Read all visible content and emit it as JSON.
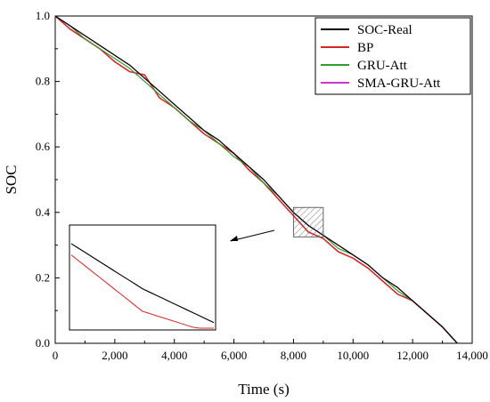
{
  "chart_data": {
    "type": "line",
    "xlabel": "Time (s)",
    "ylabel": "SOC",
    "xlim": [
      0,
      14000
    ],
    "ylim": [
      0,
      1.0
    ],
    "x_ticks": [
      0,
      2000,
      4000,
      6000,
      8000,
      10000,
      12000,
      14000
    ],
    "x_tick_labels": [
      "0",
      "2,000",
      "4,000",
      "6,000",
      "8,000",
      "10,000",
      "12,000",
      "14,000"
    ],
    "y_ticks": [
      0,
      0.2,
      0.4,
      0.6,
      0.8,
      1.0
    ],
    "y_tick_labels": [
      "0.0",
      "0.2",
      "0.4",
      "0.6",
      "0.8",
      "1.0"
    ],
    "legend_position": "top-right",
    "x": [
      0,
      500,
      1000,
      1500,
      2000,
      2500,
      3000,
      3500,
      4000,
      4500,
      5000,
      5500,
      6000,
      6500,
      7000,
      7500,
      8000,
      8500,
      9000,
      9500,
      10000,
      10500,
      11000,
      11500,
      12000,
      12500,
      13000,
      13500
    ],
    "series": [
      {
        "name": "SOC-Real",
        "color": "#000000",
        "values": [
          1.0,
          0.97,
          0.94,
          0.91,
          0.88,
          0.85,
          0.81,
          0.77,
          0.73,
          0.69,
          0.65,
          0.62,
          0.58,
          0.54,
          0.5,
          0.45,
          0.4,
          0.36,
          0.33,
          0.3,
          0.27,
          0.24,
          0.2,
          0.17,
          0.13,
          0.09,
          0.05,
          0.0
        ]
      },
      {
        "name": "BP",
        "color": "#d62728",
        "values": [
          1.0,
          0.96,
          0.93,
          0.9,
          0.86,
          0.83,
          0.82,
          0.75,
          0.72,
          0.68,
          0.64,
          0.61,
          0.58,
          0.53,
          0.49,
          0.44,
          0.39,
          0.34,
          0.32,
          0.28,
          0.26,
          0.23,
          0.19,
          0.15,
          0.13,
          0.09,
          0.05,
          0.0
        ]
      },
      {
        "name": "GRU-Att",
        "color": "#2ca02c",
        "values": [
          1.0,
          0.97,
          0.93,
          0.9,
          0.87,
          0.84,
          0.8,
          0.76,
          0.72,
          0.68,
          0.65,
          0.61,
          0.57,
          0.54,
          0.49,
          0.45,
          0.4,
          0.36,
          0.33,
          0.29,
          0.27,
          0.24,
          0.2,
          0.16,
          0.13,
          0.09,
          0.05,
          0.0
        ]
      },
      {
        "name": "SMA-GRU-Att",
        "color": "#cc33cc",
        "values": [
          1.0,
          0.97,
          0.94,
          0.91,
          0.88,
          0.85,
          0.81,
          0.77,
          0.73,
          0.69,
          0.65,
          0.62,
          0.58,
          0.54,
          0.5,
          0.45,
          0.4,
          0.36,
          0.33,
          0.3,
          0.27,
          0.24,
          0.2,
          0.17,
          0.13,
          0.09,
          0.05,
          0.0
        ]
      }
    ],
    "highlight_region": {
      "x": [
        8000,
        9000
      ],
      "y": [
        0.325,
        0.415
      ]
    },
    "inset": {
      "type": "line",
      "description_shown": "zoomed view of highlighted region"
    }
  }
}
